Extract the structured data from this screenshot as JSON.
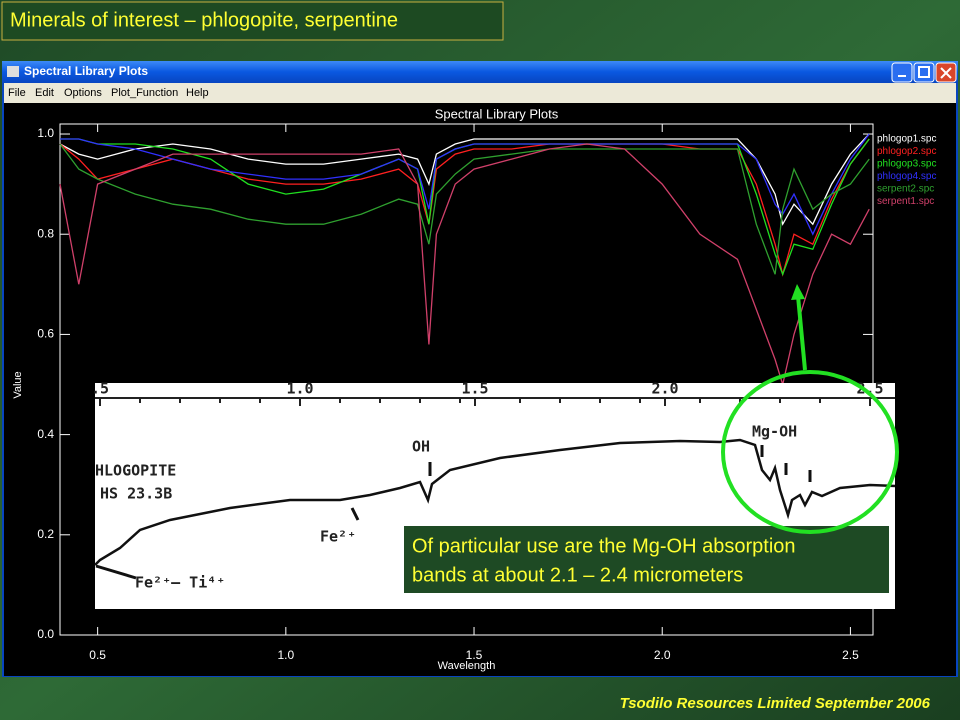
{
  "slide_title": "Minerals of interest – phlogopite, serpentine",
  "footer": "Tsodilo Resources Limited September 2006",
  "window": {
    "title": "Spectral Library Plots",
    "menu": [
      "File",
      "Edit",
      "Options",
      "Plot_Function",
      "Help"
    ]
  },
  "chart_data": {
    "type": "line",
    "title": "Spectral Library Plots",
    "x_label": "Wavelength",
    "y_label": "Value",
    "xlim": [
      0.4,
      2.56
    ],
    "ylim": [
      0,
      1.02
    ],
    "xticks": [
      0.5,
      {
        "value": 1.0,
        "label": "1.0"
      },
      1.5,
      {
        "value": 2.0,
        "label": "2.0"
      },
      2.5
    ],
    "yticks": [
      {
        "value": 0,
        "label": "0.0"
      },
      0.2,
      0.4,
      0.6,
      0.8,
      {
        "value": 1.0,
        "label": "1.0"
      }
    ],
    "legend": "right",
    "x": [
      0.4,
      0.45,
      0.5,
      0.6,
      0.7,
      0.8,
      0.9,
      1.0,
      1.1,
      1.2,
      1.3,
      1.35,
      1.38,
      1.4,
      1.45,
      1.5,
      1.6,
      1.7,
      1.8,
      1.9,
      2.0,
      2.1,
      2.2,
      2.25,
      2.3,
      2.32,
      2.35,
      2.4,
      2.45,
      2.5,
      2.55
    ],
    "series": [
      {
        "name": "phlogop1.spc",
        "color": "#ffffff",
        "values": [
          0.98,
          0.96,
          0.95,
          0.97,
          0.98,
          0.97,
          0.95,
          0.94,
          0.94,
          0.95,
          0.96,
          0.95,
          0.9,
          0.96,
          0.98,
          0.99,
          0.99,
          0.99,
          0.99,
          0.99,
          0.99,
          0.99,
          0.99,
          0.95,
          0.88,
          0.82,
          0.86,
          0.82,
          0.9,
          0.96,
          1.0
        ]
      },
      {
        "name": "phlogop2.spc",
        "color": "#ff2020",
        "values": [
          0.98,
          0.95,
          0.91,
          0.93,
          0.95,
          0.93,
          0.91,
          0.9,
          0.9,
          0.91,
          0.93,
          0.9,
          0.82,
          0.93,
          0.96,
          0.97,
          0.97,
          0.98,
          0.98,
          0.98,
          0.98,
          0.97,
          0.97,
          0.9,
          0.78,
          0.72,
          0.8,
          0.78,
          0.87,
          0.94,
          0.99
        ]
      },
      {
        "name": "phlogop3.spc",
        "color": "#20e020",
        "values": [
          0.99,
          0.99,
          0.98,
          0.98,
          0.97,
          0.95,
          0.9,
          0.88,
          0.89,
          0.92,
          0.95,
          0.93,
          0.82,
          0.95,
          0.97,
          0.98,
          0.98,
          0.98,
          0.98,
          0.98,
          0.98,
          0.98,
          0.98,
          0.88,
          0.76,
          0.72,
          0.78,
          0.77,
          0.86,
          0.94,
          0.99
        ]
      },
      {
        "name": "phlogop4.spc",
        "color": "#3030ff",
        "values": [
          0.99,
          0.99,
          0.98,
          0.97,
          0.95,
          0.93,
          0.92,
          0.91,
          0.91,
          0.92,
          0.95,
          0.93,
          0.85,
          0.95,
          0.97,
          0.98,
          0.98,
          0.98,
          0.98,
          0.98,
          0.98,
          0.98,
          0.98,
          0.95,
          0.86,
          0.84,
          0.88,
          0.8,
          0.88,
          0.95,
          1.0
        ]
      },
      {
        "name": "serpent2.spc",
        "color": "#2fa02f",
        "values": [
          0.98,
          0.93,
          0.91,
          0.88,
          0.86,
          0.85,
          0.83,
          0.82,
          0.82,
          0.84,
          0.87,
          0.86,
          0.78,
          0.88,
          0.92,
          0.95,
          0.96,
          0.97,
          0.97,
          0.97,
          0.97,
          0.97,
          0.97,
          0.82,
          0.72,
          0.85,
          0.93,
          0.85,
          0.88,
          0.9,
          0.95
        ]
      },
      {
        "name": "serpent1.spc",
        "color": "#d0406a",
        "values": [
          0.9,
          0.7,
          0.9,
          0.93,
          0.96,
          0.96,
          0.96,
          0.96,
          0.96,
          0.96,
          0.97,
          0.9,
          0.58,
          0.8,
          0.9,
          0.93,
          0.95,
          0.97,
          0.98,
          0.97,
          0.9,
          0.8,
          0.75,
          0.65,
          0.55,
          0.5,
          0.6,
          0.72,
          0.8,
          0.78,
          0.85
        ]
      }
    ]
  },
  "inset": {
    "axis_labels": [
      ".5",
      "1.0",
      "1.5",
      "2.0",
      "2.5"
    ],
    "mineral": "HLOGOPITE",
    "sample": "HS 23.3B",
    "oh": "OH",
    "mgoh": "Mg-OH",
    "fe": "Fe²⁺",
    "feti": "Fe²⁺— Ti⁴⁺"
  },
  "callout": [
    "Of particular use are the Mg-OH absorption",
    "bands at about 2.1 – 2.4 micrometers"
  ]
}
